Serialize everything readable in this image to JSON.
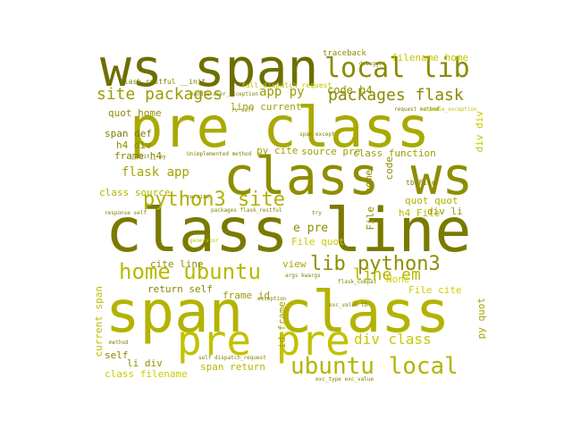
{
  "background": "#ffffff",
  "cloud_background": "#ffffff",
  "words": [
    {
      "text": "class line",
      "color": "#7a7a00"
    },
    {
      "text": "span class",
      "color": "#b3b300"
    },
    {
      "text": "pre class",
      "color": "#a9a900"
    },
    {
      "text": "class ws",
      "color": "#8e8e00"
    },
    {
      "text": "ws span",
      "color": "#6e6e00"
    },
    {
      "text": "pre pre",
      "color": "#c2c200"
    },
    {
      "text": "ubuntu local",
      "color": "#b4b400"
    },
    {
      "text": "local lib",
      "color": "#8a8a00"
    },
    {
      "text": "home ubuntu",
      "color": "#b8b800"
    },
    {
      "text": "lib python3",
      "color": "#8f8f00"
    },
    {
      "text": "python3 site",
      "color": "#b0b000"
    },
    {
      "text": "site packages",
      "color": "#9c9c00"
    },
    {
      "text": "packages flask",
      "color": "#8a8a00"
    },
    {
      "text": "line em",
      "color": "#b5b500"
    },
    {
      "text": "div class",
      "color": "#c8c800"
    },
    {
      "text": "flask app",
      "color": "#a5a500"
    },
    {
      "text": "app py",
      "color": "#9a9a00"
    },
    {
      "text": "code h4",
      "color": "#8d8d00"
    },
    {
      "text": "quot home",
      "color": "#8f8f00"
    },
    {
      "text": "line current",
      "color": "#a1a100"
    },
    {
      "text": "h4 div",
      "color": "#8c8c00"
    },
    {
      "text": "span def",
      "color": "#7f7f00"
    },
    {
      "text": "frame h4",
      "color": "#838300"
    },
    {
      "text": "class source",
      "color": "#b4b400"
    },
    {
      "text": "py cite",
      "color": "#9e9e00"
    },
    {
      "text": "source pre",
      "color": "#a0a000"
    },
    {
      "text": "class function",
      "color": "#9b9b00"
    },
    {
      "text": "e pre",
      "color": "#8c8c00"
    },
    {
      "text": "File quot",
      "color": "#c9c900"
    },
    {
      "text": "cite line",
      "color": "#8d8d00"
    },
    {
      "text": "return self",
      "color": "#888800"
    },
    {
      "text": "frame id",
      "color": "#9a9a00"
    },
    {
      "text": "view",
      "color": "#a8a800"
    },
    {
      "text": "span return",
      "color": "#b6b600"
    },
    {
      "text": "li div",
      "color": "#8f8f00"
    },
    {
      "text": "self",
      "color": "#868600"
    },
    {
      "text": "class filename",
      "color": "#cbcb00"
    },
    {
      "text": "current span",
      "color": "#bcbc00"
    },
    {
      "text": "id frame",
      "color": "#a3a300"
    },
    {
      "text": "None",
      "color": "#d2d200"
    },
    {
      "text": "File cite",
      "color": "#cfcf00"
    },
    {
      "text": "quot quot",
      "color": "#b2b200"
    },
    {
      "text": "div li",
      "color": "#969600"
    },
    {
      "text": "h4 File",
      "color": "#b9b900"
    },
    {
      "text": "filename home",
      "color": "#c5c500"
    },
    {
      "text": "traceback",
      "color": "#8e8e00"
    },
    {
      "text": "div div",
      "color": "#c9c900"
    },
    {
      "text": "py quot",
      "color": "#a6a600"
    },
    {
      "text": "code",
      "color": "#8d8d00"
    },
    {
      "text": "home",
      "color": "#8d8d00"
    },
    {
      "text": "File",
      "color": "#8d8d00"
    },
    {
      "text": "tb File",
      "color": "#7f7f00"
    },
    {
      "text": "flask_restful __init__",
      "color": "#808000"
    },
    {
      "text": "full_dispatch_request",
      "color": "#c3c300"
    },
    {
      "text": "rv self",
      "color": "#8a8a00"
    },
    {
      "text": "Unimplemented method",
      "color": "#808000"
    },
    {
      "text": "handle_user_exception",
      "color": "#808000"
    },
    {
      "text": "packages flask_restful",
      "color": "#808000"
    },
    {
      "text": "response self",
      "color": "#808000"
    },
    {
      "text": "args kwargs",
      "color": "#808000"
    },
    {
      "text": "exc_value tb",
      "color": "#808000"
    },
    {
      "text": "exc_type exc_value",
      "color": "#808000"
    },
    {
      "text": "flask_compat",
      "color": "#808000"
    },
    {
      "text": "debugger",
      "color": "#808000"
    },
    {
      "text": "request method",
      "color": "#808000"
    },
    {
      "text": "handle_exception",
      "color": "#c3c300"
    },
    {
      "text": "span except",
      "color": "#808000"
    },
    {
      "text": "__init__ py",
      "color": "#808000"
    },
    {
      "text": "reraise",
      "color": "#808000"
    },
    {
      "text": "try",
      "color": "#808000"
    },
    {
      "text": "exception",
      "color": "#808000"
    },
    {
      "text": "generator",
      "color": "#c3c300"
    },
    {
      "text": "method",
      "color": "#808000"
    },
    {
      "text": "self dispatch_request",
      "color": "#808000"
    }
  ]
}
